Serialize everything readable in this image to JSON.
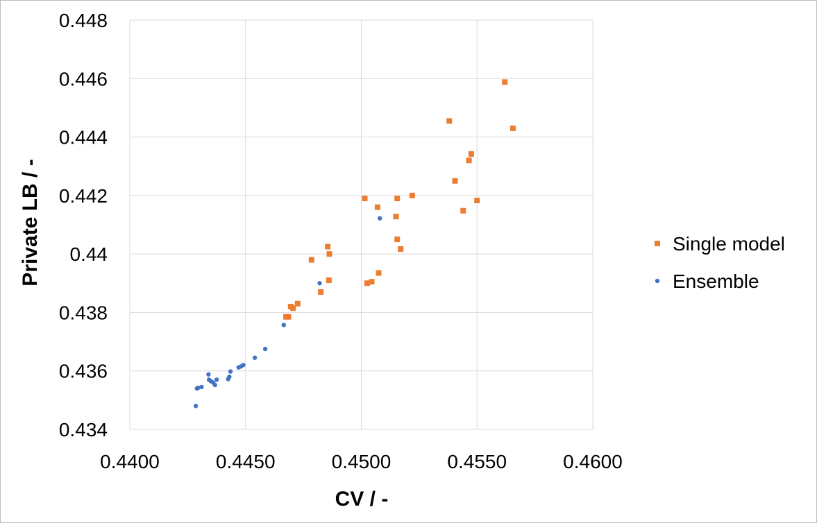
{
  "chart_data": {
    "type": "scatter",
    "xlabel": "CV /  -",
    "ylabel": "Private LB / -",
    "xlim": [
      0.44,
      0.46
    ],
    "ylim": [
      0.434,
      0.448
    ],
    "x_ticks": [
      "0.4400",
      "0.4450",
      "0.4500",
      "0.4550",
      "0.4600"
    ],
    "y_ticks": [
      "0.434",
      "0.436",
      "0.438",
      "0.44",
      "0.442",
      "0.444",
      "0.446",
      "0.448"
    ],
    "grid": true,
    "legend_position": "right",
    "series": [
      {
        "name": "Single model",
        "color": "#ED7D31",
        "marker": "square",
        "points": [
          [
            0.44675,
            0.43785
          ],
          [
            0.44685,
            0.43785
          ],
          [
            0.44695,
            0.4382
          ],
          [
            0.44705,
            0.43815
          ],
          [
            0.44725,
            0.4383
          ],
          [
            0.44785,
            0.4398
          ],
          [
            0.44825,
            0.4387
          ],
          [
            0.44855,
            0.44025
          ],
          [
            0.4486,
            0.4391
          ],
          [
            0.44862,
            0.44
          ],
          [
            0.45015,
            0.4419
          ],
          [
            0.45025,
            0.439
          ],
          [
            0.45045,
            0.43905
          ],
          [
            0.4507,
            0.4416
          ],
          [
            0.45075,
            0.43935
          ],
          [
            0.4515,
            0.44128
          ],
          [
            0.45155,
            0.4419
          ],
          [
            0.45155,
            0.4405
          ],
          [
            0.4517,
            0.44017
          ],
          [
            0.4522,
            0.442
          ],
          [
            0.4538,
            0.44455
          ],
          [
            0.45405,
            0.4425
          ],
          [
            0.4544,
            0.44148
          ],
          [
            0.45465,
            0.4432
          ],
          [
            0.45475,
            0.44342
          ],
          [
            0.455,
            0.44183
          ],
          [
            0.4562,
            0.44588
          ],
          [
            0.45655,
            0.4443
          ]
        ]
      },
      {
        "name": "Ensemble",
        "color": "#4472C4",
        "marker": "circle",
        "points": [
          [
            0.44285,
            0.4348
          ],
          [
            0.4429,
            0.4354
          ],
          [
            0.44295,
            0.43542
          ],
          [
            0.4431,
            0.43545
          ],
          [
            0.4434,
            0.43588
          ],
          [
            0.44342,
            0.4357
          ],
          [
            0.4435,
            0.43565
          ],
          [
            0.4436,
            0.4356
          ],
          [
            0.44368,
            0.43552
          ],
          [
            0.44375,
            0.4357
          ],
          [
            0.44425,
            0.43572
          ],
          [
            0.4443,
            0.4358
          ],
          [
            0.44435,
            0.43598
          ],
          [
            0.4447,
            0.43612
          ],
          [
            0.4448,
            0.43615
          ],
          [
            0.4449,
            0.4362
          ],
          [
            0.4454,
            0.43645
          ],
          [
            0.44585,
            0.43675
          ],
          [
            0.44665,
            0.43757
          ],
          [
            0.4482,
            0.439
          ],
          [
            0.4508,
            0.44122
          ]
        ]
      }
    ]
  }
}
